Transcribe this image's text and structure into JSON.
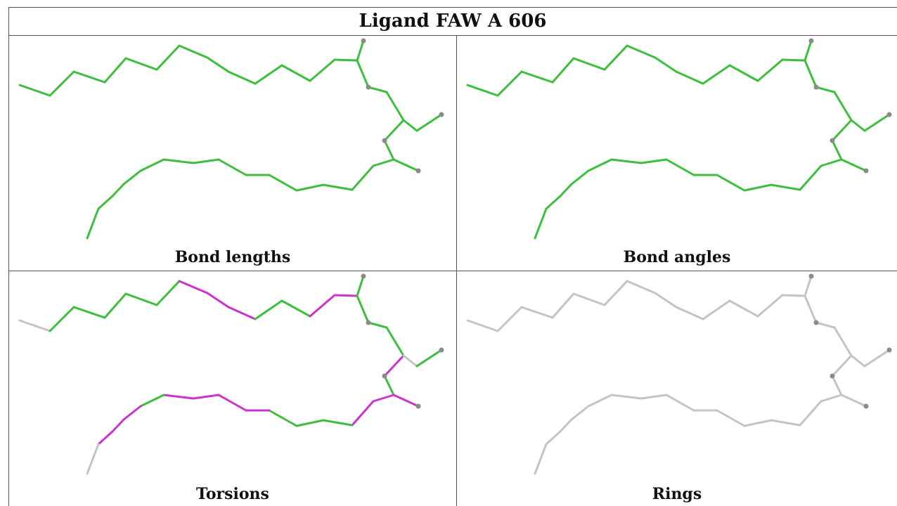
{
  "title": "Ligand FAW A 606",
  "colors": {
    "green": "#3cbf3c",
    "magenta": "#cc33cc",
    "grey": "#c4c4c4",
    "atom": "#8a8a8a"
  },
  "panels": [
    {
      "caption": "Bond lengths",
      "mode": "green"
    },
    {
      "caption": "Bond angles",
      "mode": "green"
    },
    {
      "caption": "Torsions",
      "mode": "torsion"
    },
    {
      "caption": "Rings",
      "mode": "grey"
    }
  ]
}
